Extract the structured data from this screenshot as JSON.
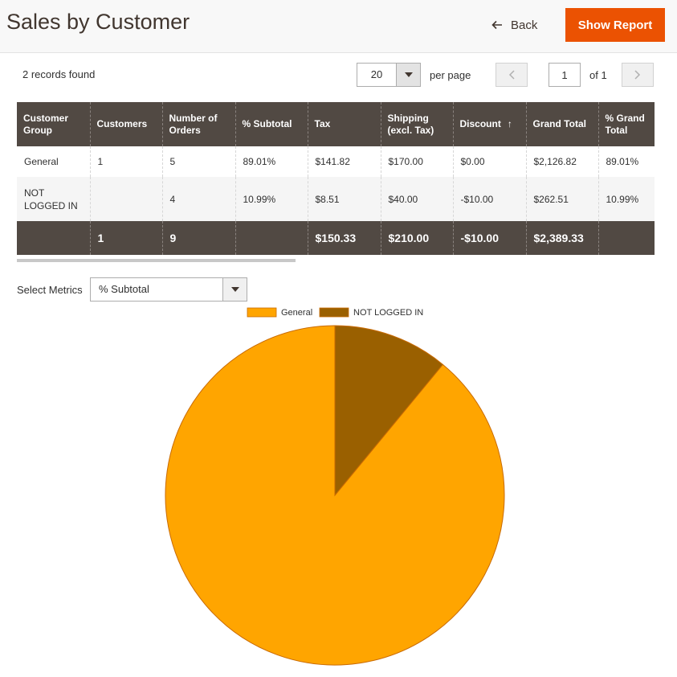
{
  "header": {
    "title": "Sales by Customer",
    "back_label": "Back",
    "show_report_label": "Show Report"
  },
  "toolbar": {
    "records_found": "2 records found",
    "per_page_value": "20",
    "per_page_label": "per page",
    "page_value": "1",
    "page_of": "of 1"
  },
  "table": {
    "columns": [
      {
        "lines": [
          "Customer",
          "Group"
        ]
      },
      {
        "lines": [
          "Customers"
        ]
      },
      {
        "lines": [
          "Number of",
          "Orders"
        ]
      },
      {
        "lines": [
          "% Subtotal"
        ]
      },
      {
        "lines": [
          "Tax"
        ]
      },
      {
        "lines": [
          "Shipping",
          "(excl. Tax)"
        ]
      },
      {
        "lines": [
          "Discount"
        ],
        "sort": "↑"
      },
      {
        "lines": [
          "Grand Total"
        ]
      },
      {
        "lines": [
          "% Grand",
          "Total"
        ]
      }
    ],
    "rows": [
      [
        "General",
        "1",
        "5",
        "89.01%",
        "$141.82",
        "$170.00",
        "$0.00",
        "$2,126.82",
        "89.01%"
      ],
      [
        "NOT LOGGED IN",
        "",
        "4",
        "10.99%",
        "$8.51",
        "$40.00",
        "-$10.00",
        "$262.51",
        "10.99%"
      ]
    ],
    "totals": [
      "",
      "1",
      "9",
      "",
      "$150.33",
      "$210.00",
      "-$10.00",
      "$2,389.33",
      ""
    ]
  },
  "metrics": {
    "label": "Select Metrics",
    "selected": "% Subtotal"
  },
  "icons": {
    "back": "arrow-left-icon",
    "dropdown": "caret-down-icon",
    "prev": "chevron-left-icon",
    "next": "chevron-right-icon",
    "sort": "arrow-up-icon"
  },
  "colors": {
    "accent": "#eb5202",
    "table_header": "#514943",
    "general": "#ffa500",
    "not_logged_in": "#9a6000",
    "slice_stroke": "#c96a00"
  },
  "chart_data": {
    "type": "pie",
    "metric": "% Subtotal",
    "labels": [
      "General",
      "NOT LOGGED IN"
    ],
    "values": [
      89.01,
      10.99
    ],
    "colors": [
      "#ffa500",
      "#9a6000"
    ],
    "legend_position": "top-center",
    "start": "12 o'clock, counter-clockwise"
  }
}
